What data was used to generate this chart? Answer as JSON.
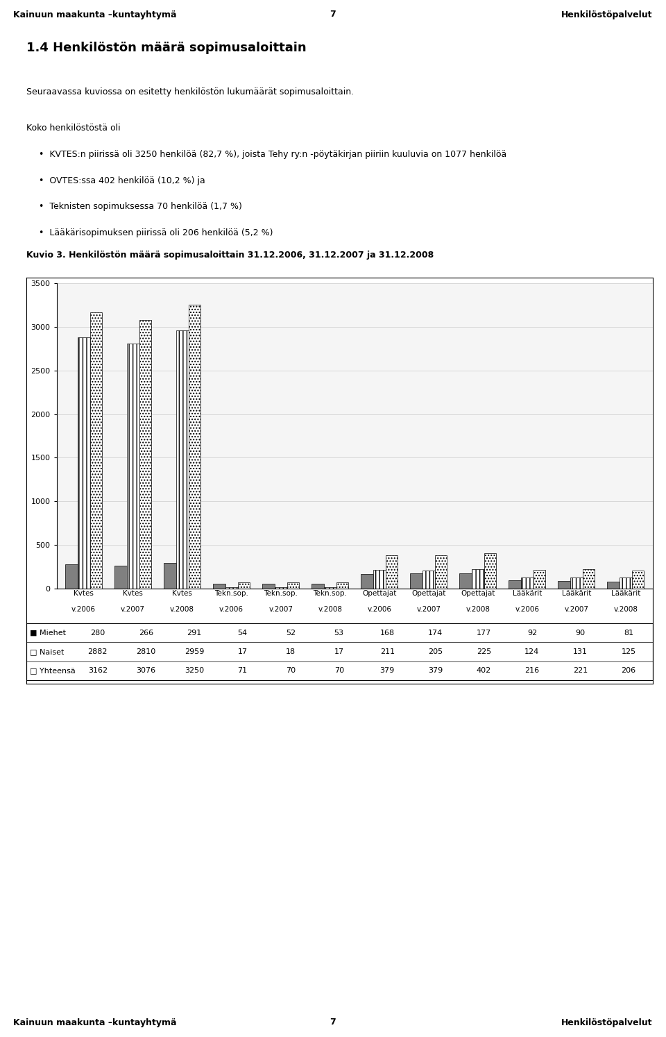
{
  "header_left": "Kainuun maakunta –kuntayhtymä",
  "header_center": "7",
  "header_right": "Henkilöstöpalvelut",
  "page_title": "1.4 Henkilöstön määrä sopimusaloittain",
  "intro": "Seuraavassa kuviossa on esitetty henkilöstön lukumäärät sopimusaloittain.",
  "bullet_header": "Koko henkilöstöstä oli",
  "bullets": [
    "KVTES:n piirissä oli 3250 henkilöä (82,7 %), joista Tehy ry:n -pöytäkirjan piiriin kuuluvia on 1077 henkilöä",
    "OVTES:ssa 402 henkilöä (10,2 %) ja",
    "Teknisten sopimuksessa 70 henkilöä (1,7 %)",
    "Lääkärisopimuksen piirissä oli 206 henkilöä (5,2 %)"
  ],
  "chart_title": "Kuvio 3. Henkilöstön määrä sopimusaloittain 31.12.2006, 31.12.2007 ja 31.12.2008",
  "cat_line1": [
    "Kvtes",
    "Kvtes",
    "Kvtes",
    "Tekn.sop.",
    "Tekn.sop.",
    "Tekn.sop.",
    "Opettajat",
    "Opettajat",
    "Opettajat",
    "Lääkärit",
    "Lääkärit",
    "Lääkärit"
  ],
  "cat_line2": [
    "v.2006",
    "v.2007",
    "v.2008",
    "v.2006",
    "v.2007",
    "v.2008",
    "v.2006",
    "v.2007",
    "v.2008",
    "v.2006",
    "v.2007",
    "v.2008"
  ],
  "miehet": [
    280,
    266,
    291,
    54,
    52,
    53,
    168,
    174,
    177,
    92,
    90,
    81
  ],
  "naiset": [
    2882,
    2810,
    2959,
    17,
    18,
    17,
    211,
    205,
    225,
    124,
    131,
    125
  ],
  "yhteensa": [
    3162,
    3076,
    3250,
    71,
    70,
    70,
    379,
    379,
    402,
    216,
    221,
    206
  ],
  "legend_labels": [
    "Miehet",
    "Naiset",
    "Yhteensä"
  ],
  "row_labels": [
    "■ Miehet",
    "□ Naiset",
    "□ Yhteensä"
  ],
  "ylim_max": 3500,
  "yticks": [
    0,
    500,
    1000,
    1500,
    2000,
    2500,
    3000,
    3500
  ],
  "bar_width": 0.25,
  "header_bg": "#ccf0cc",
  "white": "#ffffff",
  "black": "#000000",
  "plot_bg": "#f5f5f5",
  "grid_color": "#cccccc"
}
